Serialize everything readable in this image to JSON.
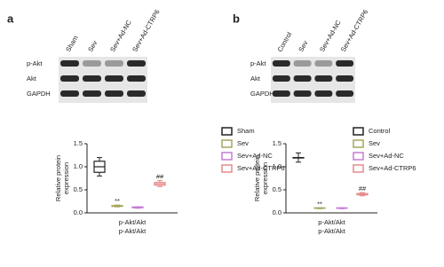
{
  "chart_data": [
    {
      "type": "box",
      "panel_label": "a",
      "blot": {
        "lanes": [
          "Sham",
          "Sev",
          "Sev+Ad-NC",
          "Sev+Ad-CTRP6"
        ],
        "rows": [
          "p-Akt",
          "Akt",
          "GAPDH"
        ]
      },
      "ylabel_lines": [
        "Relative protein",
        "expression"
      ],
      "xlabel": "p-Akt/Akt",
      "categories": [
        "p-Akt/Akt"
      ],
      "ylim": [
        0,
        1.5
      ],
      "yticks": [
        {
          "value": 0,
          "label": "0.0"
        },
        0.5,
        {
          "value": 1,
          "label": "1.0"
        },
        1.5
      ],
      "series": [
        {
          "name": "Sham",
          "color": "#222222",
          "values": [
            {
              "min": 0.8,
              "q1": 0.88,
              "median": 1.0,
              "q3": 1.12,
              "max": 1.2
            }
          ]
        },
        {
          "name": "Sev",
          "color": "#a9a65e",
          "annotation": "**",
          "values": [
            {
              "min": 0.13,
              "q1": 0.14,
              "median": 0.15,
              "q3": 0.16,
              "max": 0.17
            }
          ]
        },
        {
          "name": "Sev+Ad-NC",
          "color": "#c67bd6",
          "values": [
            {
              "min": 0.1,
              "q1": 0.11,
              "median": 0.12,
              "q3": 0.13,
              "max": 0.13
            }
          ]
        },
        {
          "name": "Sev+Ad-CTRP6",
          "color": "#e68a8a",
          "annotation": "##",
          "values": [
            {
              "min": 0.57,
              "q1": 0.6,
              "median": 0.63,
              "q3": 0.66,
              "max": 0.7
            }
          ]
        }
      ]
    },
    {
      "type": "box",
      "panel_label": "b",
      "blot": {
        "lanes": [
          "Control",
          "Sev",
          "Sev+Ad-NC",
          "Sev+Ad-CTRP6"
        ],
        "rows": [
          "p-Akt",
          "Akt",
          "GAPDH"
        ]
      },
      "ylabel_lines": [
        "Relative protein",
        "expression"
      ],
      "xlabel": "p-Akt/Akt",
      "categories": [
        "p-Akt/Akt"
      ],
      "ylim": [
        0,
        1.5
      ],
      "yticks": [
        {
          "value": 0,
          "label": "0.0"
        },
        0.5,
        {
          "value": 1,
          "label": "1.0"
        },
        1.5
      ],
      "series": [
        {
          "name": "Control",
          "color": "#222222",
          "values": [
            {
              "min": 1.1,
              "q1": 1.2,
              "median": 1.2,
              "q3": 1.2,
              "max": 1.3
            }
          ]
        },
        {
          "name": "Sev",
          "color": "#a9a65e",
          "annotation": "**",
          "values": [
            {
              "min": 0.09,
              "q1": 0.1,
              "median": 0.1,
              "q3": 0.11,
              "max": 0.11
            }
          ]
        },
        {
          "name": "Sev+Ad-NC",
          "color": "#c67bd6",
          "values": [
            {
              "min": 0.09,
              "q1": 0.1,
              "median": 0.1,
              "q3": 0.11,
              "max": 0.11
            }
          ]
        },
        {
          "name": "Sev+Ad-CTRP6",
          "color": "#e68a8a",
          "annotation": "##",
          "values": [
            {
              "min": 0.37,
              "q1": 0.39,
              "median": 0.4,
              "q3": 0.42,
              "max": 0.44
            }
          ]
        }
      ]
    }
  ]
}
